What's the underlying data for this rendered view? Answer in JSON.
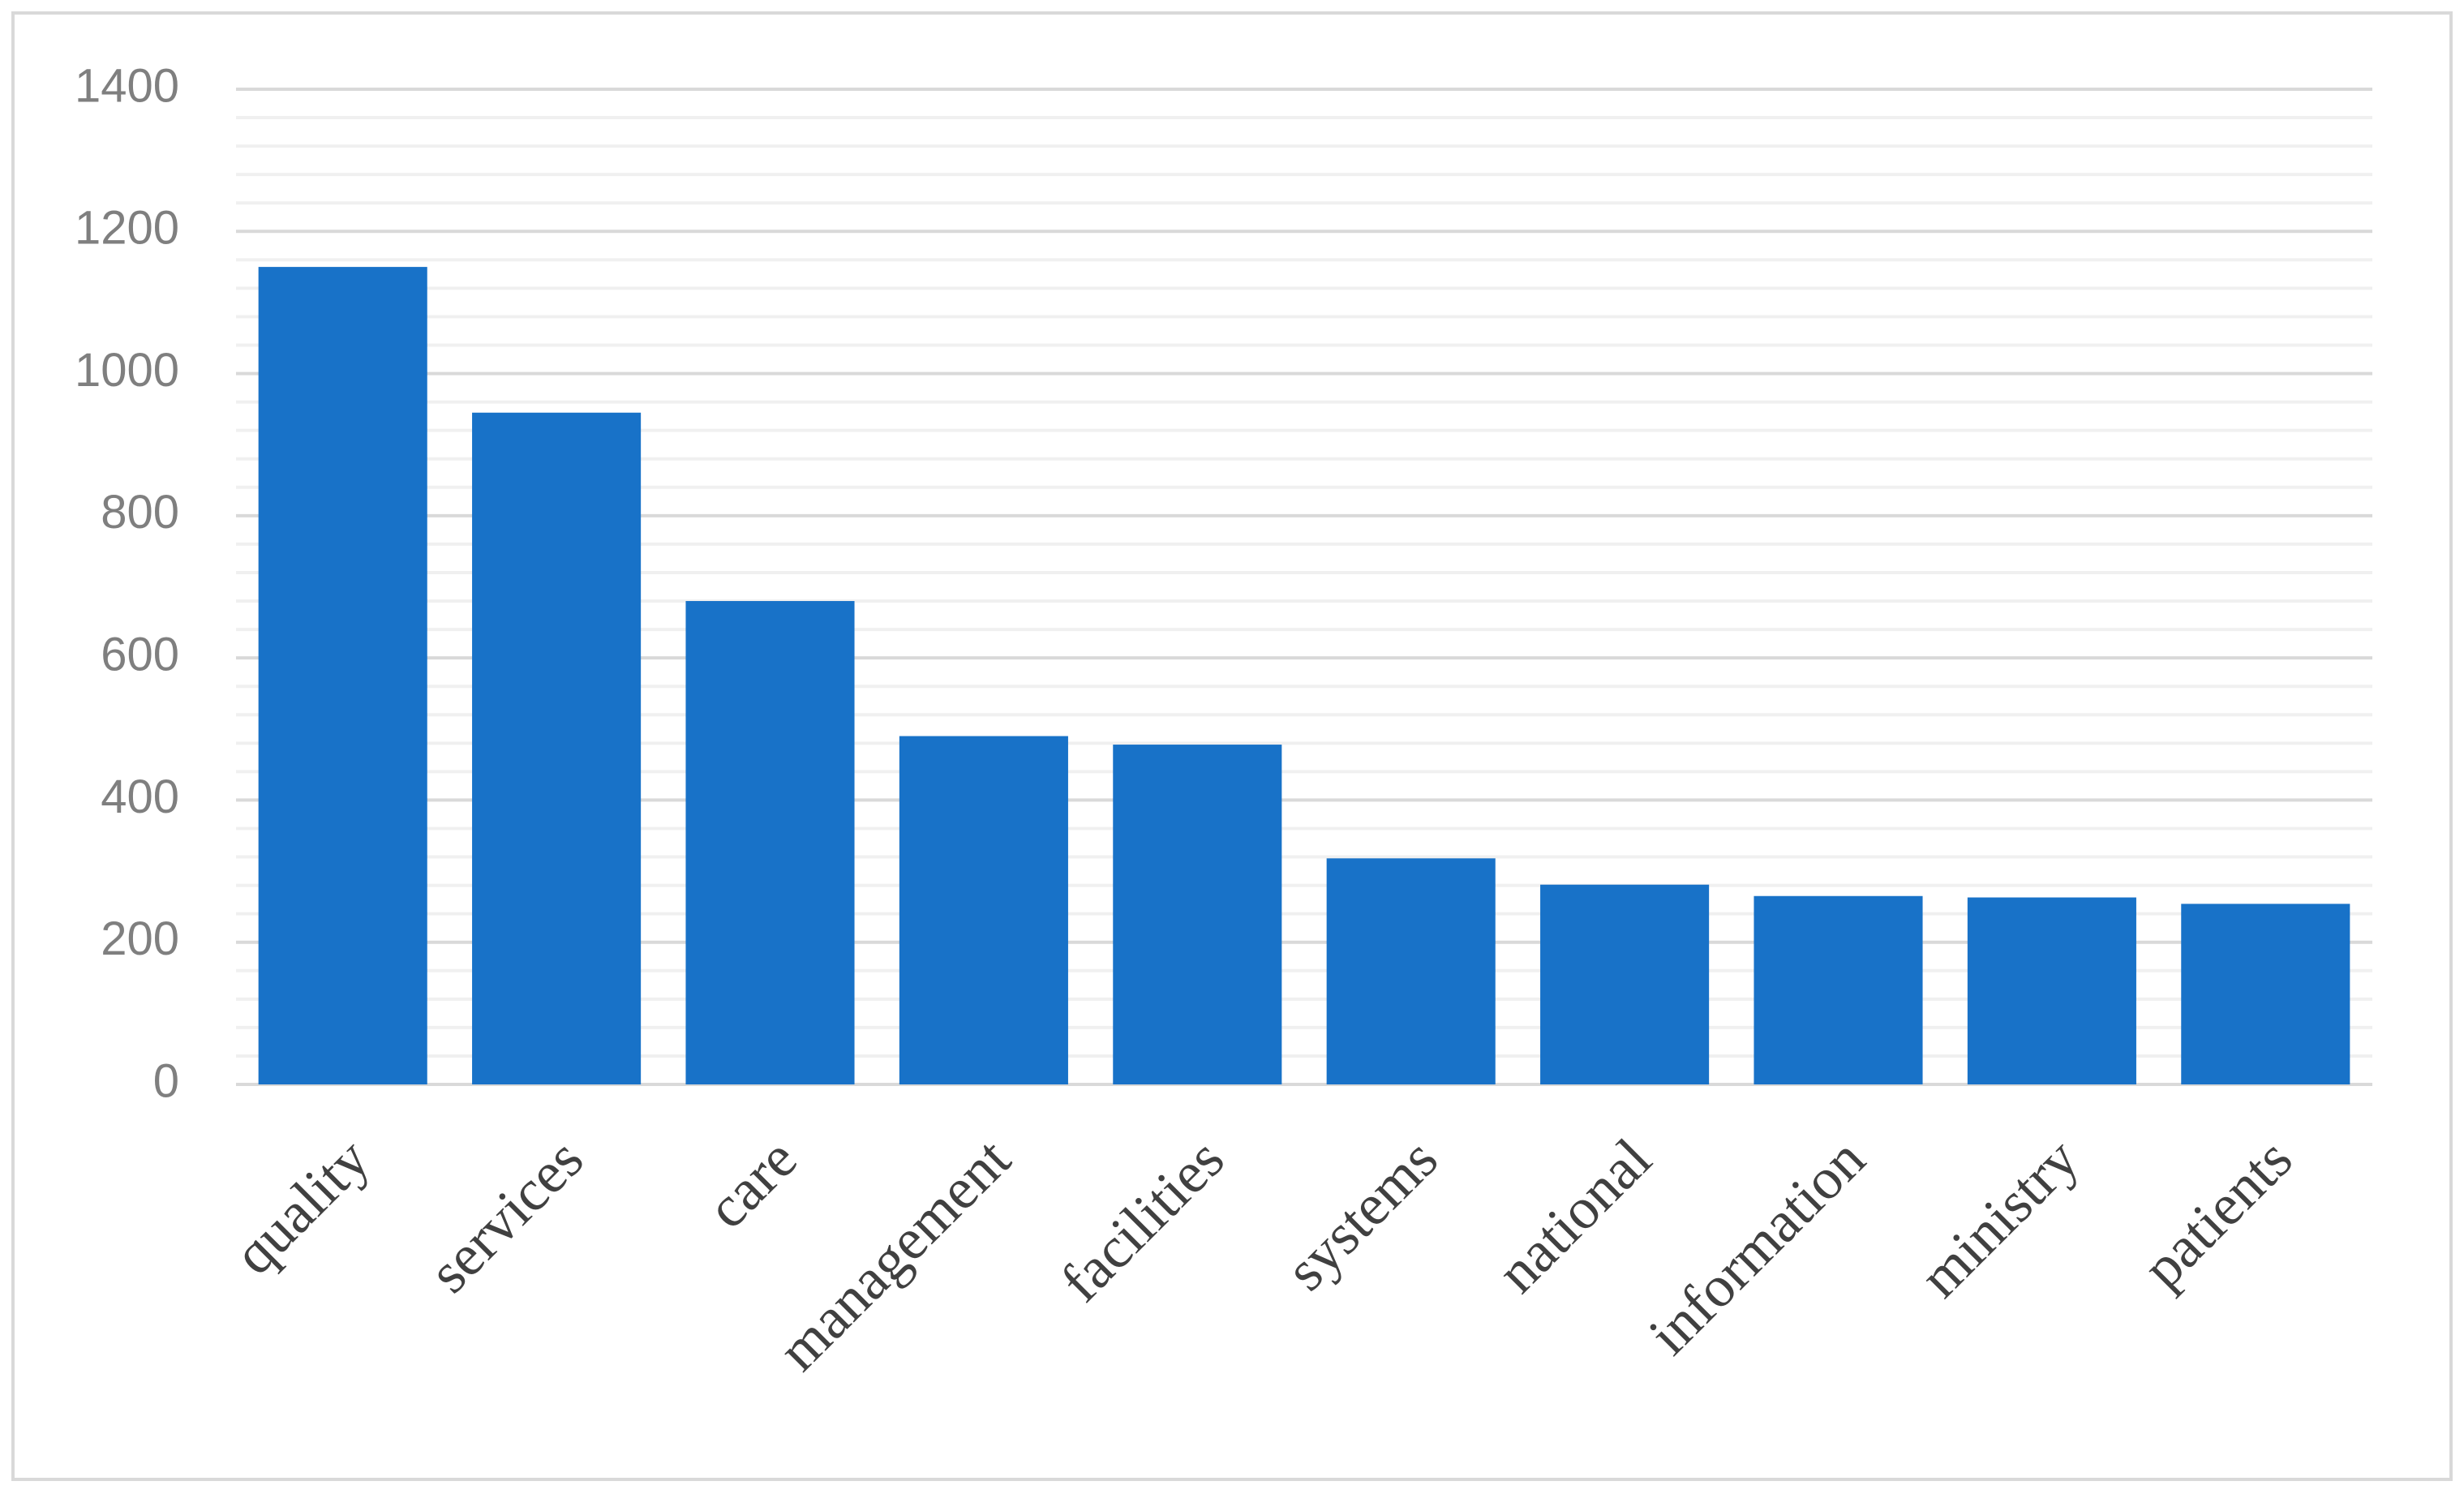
{
  "chart_data": {
    "type": "bar",
    "categories": [
      "quality",
      "services",
      "care",
      "management",
      "facilities",
      "systems",
      "national",
      "information",
      "ministry",
      "patients"
    ],
    "values": [
      1150,
      945,
      680,
      490,
      478,
      318,
      281,
      265,
      263,
      254
    ],
    "color": "#1872c8",
    "ylim": [
      0,
      1400
    ],
    "yticks": [
      0,
      200,
      400,
      600,
      800,
      1000,
      1200,
      1400
    ],
    "grid": true,
    "minor_grid_divisions": 5
  }
}
